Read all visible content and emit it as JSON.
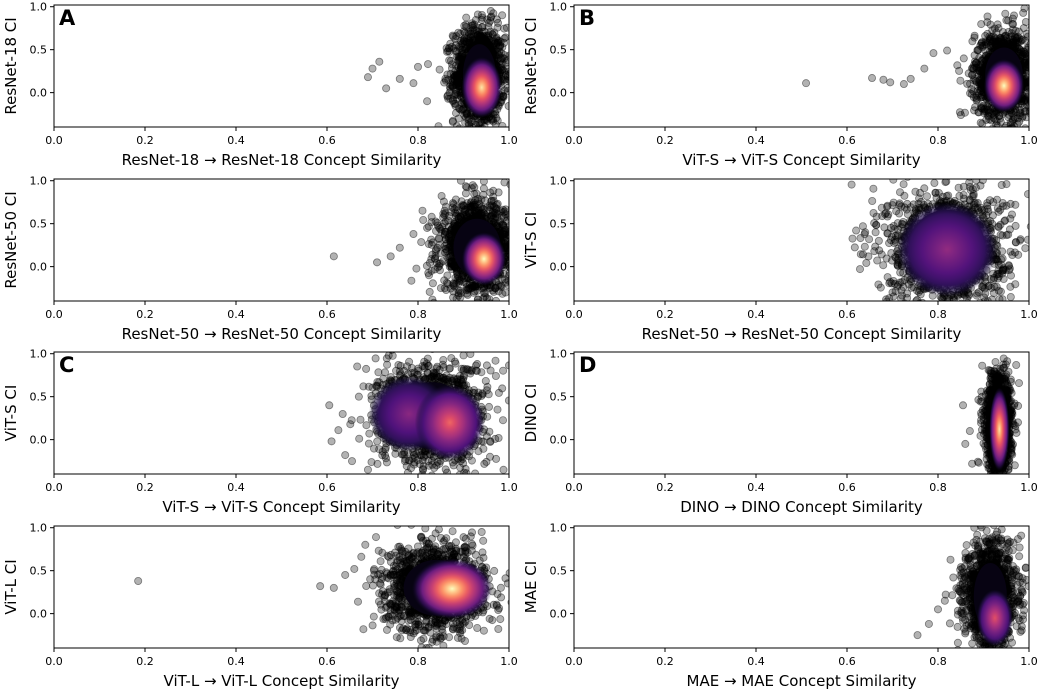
{
  "figure": {
    "panel_letters": [
      "A",
      "B",
      "C",
      "D"
    ]
  },
  "chart_data": [
    {
      "type": "scatter",
      "panel": "A",
      "title": "",
      "xlabel": "ResNet-18 → ResNet-18 Concept Similarity",
      "ylabel": "ResNet-18 CI",
      "xlim": [
        0.0,
        1.0
      ],
      "ylim": [
        -0.4,
        1.02
      ],
      "xticks": [
        "0.0",
        "0.2",
        "0.4",
        "0.6",
        "0.8",
        "1.0"
      ],
      "xtick_values": [
        0.0,
        0.2,
        0.4,
        0.6,
        0.8,
        1.0
      ],
      "yticks": [
        "0.0",
        "0.5",
        "1.0"
      ],
      "ytick_values": [
        0.0,
        0.5,
        1.0
      ],
      "cloud": {
        "cx": 0.935,
        "cy": 0.2,
        "sx": 0.028,
        "sy": 0.28
      },
      "cores": [
        {
          "x": 0.94,
          "y": 0.06,
          "rx": 0.02,
          "ry": 0.16,
          "intensity": 0.95
        }
      ],
      "outliers": [
        [
          0.69,
          0.18
        ],
        [
          0.7,
          0.28
        ],
        [
          0.715,
          0.36
        ],
        [
          0.73,
          0.05
        ],
        [
          0.76,
          0.16
        ],
        [
          0.79,
          0.11
        ],
        [
          0.8,
          0.3
        ],
        [
          0.82,
          -0.1
        ],
        [
          0.96,
          0.95
        ],
        [
          0.985,
          0.9
        ],
        [
          0.95,
          -0.32
        ]
      ]
    },
    {
      "type": "scatter",
      "panel": "B",
      "title": "",
      "xlabel": "ViT-S → ViT-S Concept Similarity",
      "ylabel": "ResNet-50 CI",
      "xlim": [
        0.0,
        1.0
      ],
      "ylim": [
        -0.4,
        1.02
      ],
      "xticks": [
        "0.0",
        "0.2",
        "0.4",
        "0.6",
        "0.8",
        "1.0"
      ],
      "xtick_values": [
        0.0,
        0.2,
        0.4,
        0.6,
        0.8,
        1.0
      ],
      "yticks": [
        "0.0",
        "0.5",
        "1.0"
      ],
      "ytick_values": [
        0.0,
        0.5,
        1.0
      ],
      "cloud": {
        "cx": 0.945,
        "cy": 0.2,
        "sx": 0.032,
        "sy": 0.25
      },
      "cores": [
        {
          "x": 0.945,
          "y": 0.08,
          "rx": 0.02,
          "ry": 0.14,
          "intensity": 1.0
        }
      ],
      "outliers": [
        [
          0.51,
          0.11
        ],
        [
          0.655,
          0.17
        ],
        [
          0.68,
          0.15
        ],
        [
          0.695,
          0.12
        ],
        [
          0.725,
          0.1
        ],
        [
          0.74,
          0.16
        ],
        [
          0.77,
          0.28
        ],
        [
          0.79,
          0.46
        ],
        [
          0.82,
          0.49
        ],
        [
          0.99,
          0.98
        ]
      ]
    },
    {
      "type": "scatter",
      "panel": "",
      "title": "",
      "xlabel": "ResNet-50 → ResNet-50 Concept Similarity",
      "ylabel": "ResNet-50 CI",
      "xlim": [
        0.0,
        1.0
      ],
      "ylim": [
        -0.4,
        1.02
      ],
      "xticks": [
        "0.0",
        "0.2",
        "0.4",
        "0.6",
        "0.8",
        "1.0"
      ],
      "xtick_values": [
        0.0,
        0.2,
        0.4,
        0.6,
        0.8,
        1.0
      ],
      "yticks": [
        "0.0",
        "0.5",
        "1.0"
      ],
      "ytick_values": [
        0.0,
        0.5,
        1.0
      ],
      "cloud": {
        "cx": 0.93,
        "cy": 0.22,
        "sx": 0.04,
        "sy": 0.26
      },
      "cores": [
        {
          "x": 0.945,
          "y": 0.09,
          "rx": 0.022,
          "ry": 0.14,
          "intensity": 1.0
        }
      ],
      "outliers": [
        [
          0.615,
          0.12
        ],
        [
          0.71,
          0.05
        ],
        [
          0.74,
          0.12
        ],
        [
          0.76,
          0.22
        ],
        [
          0.79,
          0.38
        ],
        [
          0.82,
          0.45
        ],
        [
          0.83,
          0.58
        ],
        [
          0.86,
          0.62
        ],
        [
          0.88,
          0.67
        ],
        [
          0.99,
          0.98
        ]
      ]
    },
    {
      "type": "scatter",
      "panel": "",
      "title": "",
      "xlabel": "ResNet-50 → ResNet-50 Concept Similarity",
      "ylabel": "ViT-S CI",
      "xlim": [
        0.0,
        1.0
      ],
      "ylim": [
        -0.4,
        1.02
      ],
      "xticks": [
        "0.0",
        "0.2",
        "0.4",
        "0.6",
        "0.8",
        "1.0"
      ],
      "xtick_values": [
        0.0,
        0.2,
        0.4,
        0.6,
        0.8,
        1.0
      ],
      "yticks": [
        "0.0",
        "0.5",
        "1.0"
      ],
      "ytick_values": [
        0.0,
        0.5,
        1.0
      ],
      "cloud": {
        "cx": 0.82,
        "cy": 0.22,
        "sx": 0.065,
        "sy": 0.34
      },
      "cores": [
        {
          "x": 0.82,
          "y": 0.2,
          "rx": 0.05,
          "ry": 0.25,
          "intensity": 0.42
        }
      ],
      "outliers": [
        [
          0.62,
          0.42
        ],
        [
          0.635,
          0.47
        ],
        [
          0.64,
          0.4
        ],
        [
          0.66,
          0.18
        ],
        [
          0.67,
          0.3
        ],
        [
          0.7,
          -0.3
        ],
        [
          0.94,
          0.95
        ],
        [
          0.97,
          0.72
        ]
      ]
    },
    {
      "type": "scatter",
      "panel": "C",
      "title": "",
      "xlabel": "ViT-S → ViT-S Concept Similarity",
      "ylabel": "ViT-S CI",
      "xlim": [
        0.0,
        1.0
      ],
      "ylim": [
        -0.4,
        1.02
      ],
      "xticks": [
        "0.0",
        "0.2",
        "0.4",
        "0.6",
        "0.8",
        "1.0"
      ],
      "xtick_values": [
        0.0,
        0.2,
        0.4,
        0.6,
        0.8,
        1.0
      ],
      "yticks": [
        "0.0",
        "0.5",
        "1.0"
      ],
      "ytick_values": [
        0.0,
        0.5,
        1.0
      ],
      "cloud": {
        "cx": 0.83,
        "cy": 0.28,
        "sx": 0.06,
        "sy": 0.3
      },
      "cores": [
        {
          "x": 0.78,
          "y": 0.3,
          "rx": 0.04,
          "ry": 0.2,
          "intensity": 0.4
        },
        {
          "x": 0.87,
          "y": 0.2,
          "rx": 0.035,
          "ry": 0.2,
          "intensity": 0.68
        }
      ],
      "outliers": [
        [
          0.605,
          0.4
        ],
        [
          0.61,
          -0.02
        ],
        [
          0.625,
          0.11
        ],
        [
          0.64,
          -0.18
        ],
        [
          0.655,
          -0.25
        ],
        [
          0.67,
          0.5
        ],
        [
          0.68,
          0.62
        ],
        [
          0.69,
          -0.35
        ],
        [
          0.9,
          0.98
        ],
        [
          0.93,
          0.88
        ]
      ]
    },
    {
      "type": "scatter",
      "panel": "D",
      "title": "",
      "xlabel": "DINO → DINO Concept Similarity",
      "ylabel": "DINO CI",
      "xlim": [
        0.0,
        1.0
      ],
      "ylim": [
        -0.4,
        1.02
      ],
      "xticks": [
        "0.0",
        "0.2",
        "0.4",
        "0.6",
        "0.8",
        "1.0"
      ],
      "xtick_values": [
        0.0,
        0.2,
        0.4,
        0.6,
        0.8,
        1.0
      ],
      "yticks": [
        "0.0",
        "0.5",
        "1.0"
      ],
      "ytick_values": [
        0.0,
        0.5,
        1.0
      ],
      "cloud": {
        "cx": 0.933,
        "cy": 0.18,
        "sx": 0.014,
        "sy": 0.28
      },
      "cores": [
        {
          "x": 0.935,
          "y": 0.12,
          "rx": 0.01,
          "ry": 0.22,
          "intensity": 0.95
        }
      ],
      "outliers": [
        [
          0.855,
          0.4
        ],
        [
          0.86,
          -0.05
        ],
        [
          0.87,
          0.1
        ],
        [
          0.875,
          -0.28
        ],
        [
          0.96,
          0.7
        ],
        [
          0.955,
          -0.35
        ]
      ]
    },
    {
      "type": "scatter",
      "panel": "",
      "title": "",
      "xlabel": "ViT-L → ViT-L Concept Similarity",
      "ylabel": "ViT-L CI",
      "xlim": [
        0.0,
        1.0
      ],
      "ylim": [
        -0.4,
        1.02
      ],
      "xticks": [
        "0.0",
        "0.2",
        "0.4",
        "0.6",
        "0.8",
        "1.0"
      ],
      "xtick_values": [
        0.0,
        0.2,
        0.4,
        0.6,
        0.8,
        1.0
      ],
      "yticks": [
        "0.0",
        "0.5",
        "1.0"
      ],
      "ytick_values": [
        0.0,
        0.5,
        1.0
      ],
      "cloud": {
        "cx": 0.84,
        "cy": 0.3,
        "sx": 0.055,
        "sy": 0.25
      },
      "cores": [
        {
          "x": 0.875,
          "y": 0.29,
          "rx": 0.04,
          "ry": 0.16,
          "intensity": 1.0
        }
      ],
      "outliers": [
        [
          0.185,
          0.38
        ],
        [
          0.585,
          0.32
        ],
        [
          0.615,
          0.3
        ],
        [
          0.64,
          0.45
        ],
        [
          0.66,
          0.52
        ],
        [
          0.76,
          0.78
        ],
        [
          0.8,
          0.63
        ],
        [
          0.82,
          0.77
        ],
        [
          0.9,
          0.89
        ],
        [
          0.94,
          0.95
        ]
      ]
    },
    {
      "type": "scatter",
      "panel": "",
      "title": "",
      "xlabel": "MAE → MAE Concept Similarity",
      "ylabel": "MAE CI",
      "xlim": [
        0.0,
        1.0
      ],
      "ylim": [
        -0.4,
        1.02
      ],
      "xticks": [
        "0.0",
        "0.2",
        "0.4",
        "0.6",
        "0.8",
        "1.0"
      ],
      "xtick_values": [
        0.0,
        0.2,
        0.4,
        0.6,
        0.8,
        1.0
      ],
      "yticks": [
        "0.0",
        "0.5",
        "1.0"
      ],
      "ytick_values": [
        0.0,
        0.5,
        1.0
      ],
      "cloud": {
        "cx": 0.915,
        "cy": 0.2,
        "sx": 0.028,
        "sy": 0.3
      },
      "cores": [
        {
          "x": 0.925,
          "y": -0.05,
          "rx": 0.018,
          "ry": 0.15,
          "intensity": 0.62
        }
      ],
      "outliers": [
        [
          0.755,
          -0.25
        ],
        [
          0.78,
          -0.12
        ],
        [
          0.8,
          0.05
        ],
        [
          0.815,
          0.15
        ],
        [
          0.86,
          0.42
        ],
        [
          0.87,
          0.62
        ],
        [
          0.94,
          0.98
        ],
        [
          0.93,
          0.95
        ]
      ]
    }
  ]
}
